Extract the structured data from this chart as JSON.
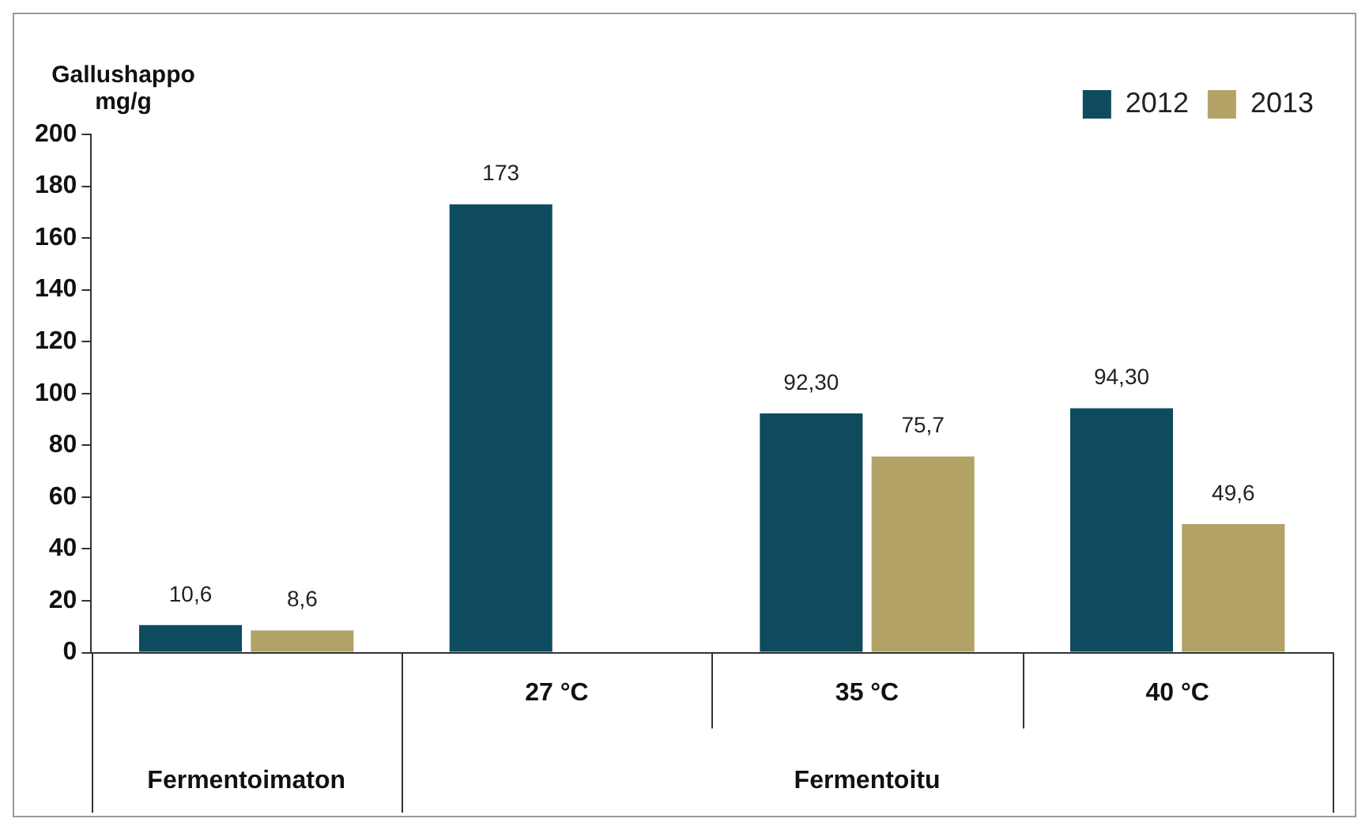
{
  "chart_data": {
    "type": "bar",
    "ylabel": "Gallushappo mg/g",
    "categories": [
      null,
      "27 °C",
      "35 °C",
      "40 °C"
    ],
    "series": [
      {
        "name": "2012",
        "color": "#0e4b5e",
        "values": [
          10.6,
          173,
          92.3,
          94.3
        ],
        "value_labels": [
          "10,6",
          "173",
          "92,30",
          "94,30"
        ]
      },
      {
        "name": "2013",
        "color": "#b3a266",
        "values": [
          8.6,
          null,
          75.7,
          49.6
        ],
        "value_labels": [
          "8,6",
          null,
          "75,7",
          "49,6"
        ]
      }
    ],
    "annotations": [
      "Fermentoimaton",
      "Fermentoitu"
    ],
    "ylim": [
      0,
      200
    ],
    "yticks": [
      0,
      20,
      40,
      60,
      80,
      100,
      120,
      140,
      160,
      180,
      200
    ],
    "grid": false,
    "legend": "top right"
  }
}
